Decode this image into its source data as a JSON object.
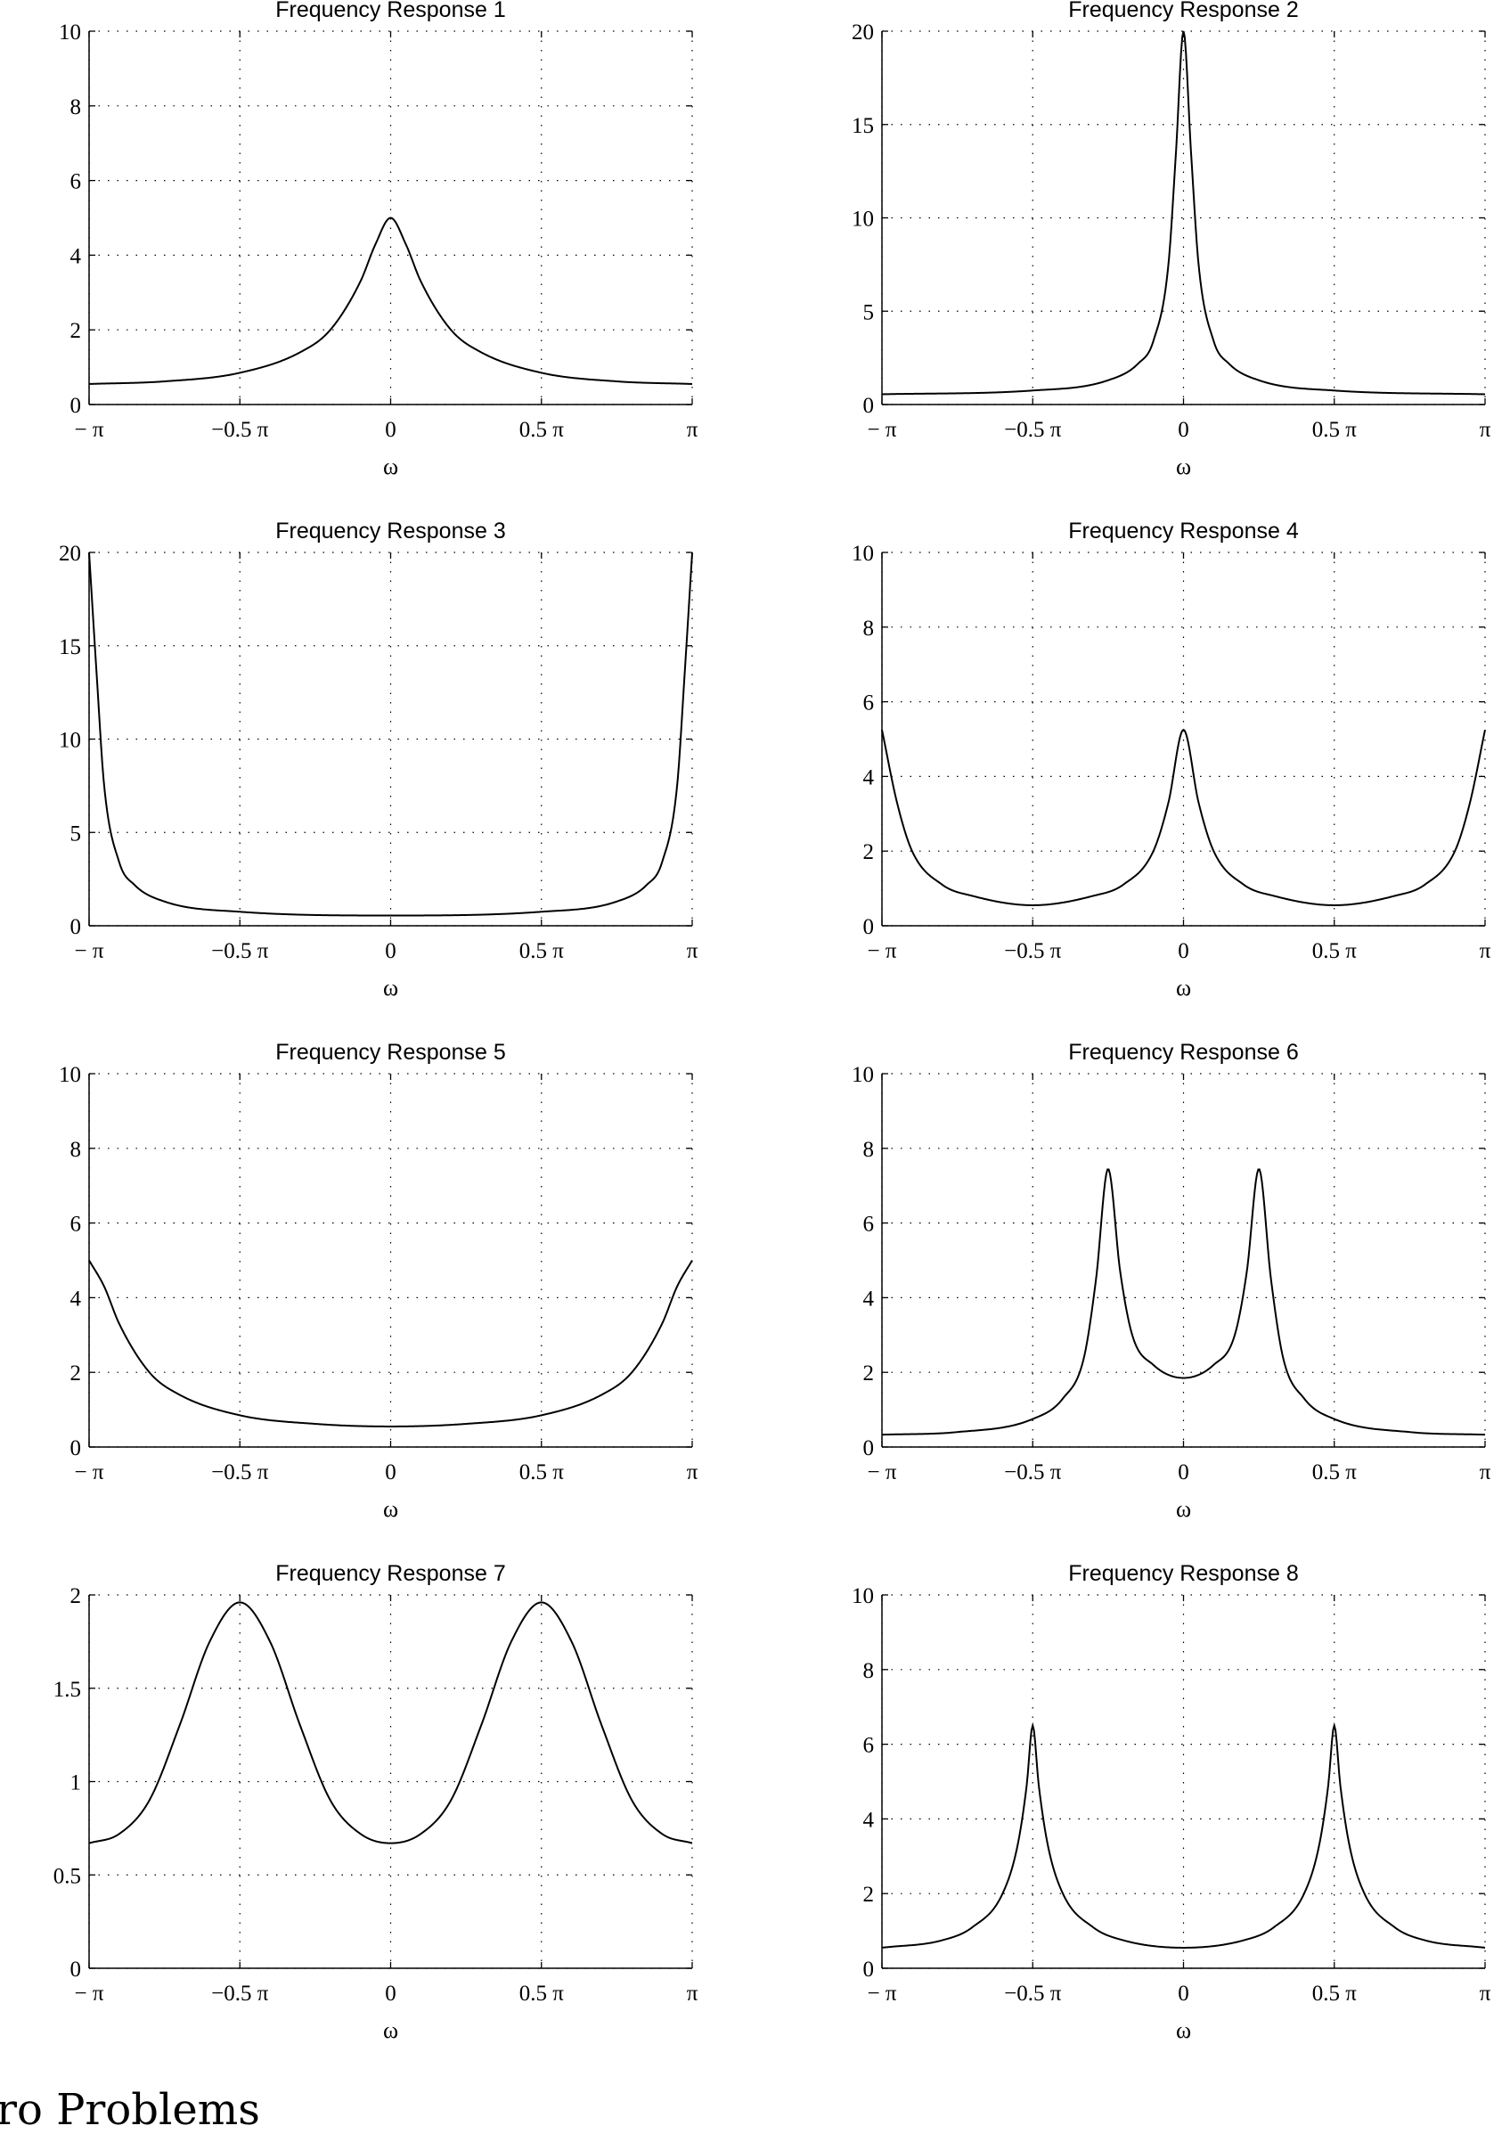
{
  "figure": {
    "x_ticks": [
      "− π",
      "−0.5 π",
      "0",
      "0.5 π",
      "π"
    ],
    "xlabel": "ω",
    "grid": true
  },
  "trailing_heading": "ro Problems",
  "chart_data": [
    {
      "type": "line",
      "title": "Frequency Response 1",
      "xlabel": "ω",
      "xlim": [
        -1,
        1
      ],
      "ylim": [
        0,
        10
      ],
      "yticks": [
        "0",
        "2",
        "4",
        "6",
        "8",
        "10"
      ],
      "ytick_values": [
        0,
        2,
        4,
        6,
        8,
        10
      ],
      "series": [
        {
          "x": [
            -1,
            -0.75,
            -0.5,
            -0.3,
            -0.2,
            -0.1,
            -0.05,
            0,
            0.05,
            0.1,
            0.2,
            0.3,
            0.5,
            0.75,
            1
          ],
          "values": [
            0.55,
            0.62,
            0.85,
            1.4,
            2.0,
            3.3,
            4.3,
            5.0,
            4.3,
            3.3,
            2.0,
            1.4,
            0.85,
            0.62,
            0.55
          ]
        }
      ]
    },
    {
      "type": "line",
      "title": "Frequency Response 2",
      "xlabel": "ω",
      "xlim": [
        -1,
        1
      ],
      "ylim": [
        0,
        20
      ],
      "yticks": [
        "0",
        "5",
        "10",
        "15",
        "20"
      ],
      "ytick_values": [
        0,
        5,
        10,
        15,
        20
      ],
      "series": [
        {
          "x": [
            -1,
            -0.5,
            -0.25,
            -0.15,
            -0.1,
            -0.05,
            -0.025,
            0,
            0.025,
            0.05,
            0.1,
            0.15,
            0.25,
            0.5,
            1
          ],
          "values": [
            0.55,
            0.75,
            1.3,
            2.2,
            3.4,
            7.5,
            13.5,
            20,
            13.5,
            7.5,
            3.4,
            2.2,
            1.3,
            0.75,
            0.55
          ]
        }
      ]
    },
    {
      "type": "line",
      "title": "Frequency Response 3",
      "xlabel": "ω",
      "xlim": [
        -1,
        1
      ],
      "ylim": [
        0,
        20
      ],
      "yticks": [
        "0",
        "5",
        "10",
        "15",
        "20"
      ],
      "ytick_values": [
        0,
        5,
        10,
        15,
        20
      ],
      "series": [
        {
          "x": [
            -1,
            -0.975,
            -0.95,
            -0.9,
            -0.85,
            -0.75,
            -0.5,
            0,
            0.5,
            0.75,
            0.85,
            0.9,
            0.95,
            0.975,
            1
          ],
          "values": [
            20,
            13.5,
            7.5,
            3.4,
            2.2,
            1.3,
            0.75,
            0.55,
            0.75,
            1.3,
            2.2,
            3.4,
            7.5,
            13.5,
            20
          ]
        }
      ]
    },
    {
      "type": "line",
      "title": "Frequency Response 4",
      "xlabel": "ω",
      "xlim": [
        -1,
        1
      ],
      "ylim": [
        0,
        10
      ],
      "yticks": [
        "0",
        "2",
        "4",
        "6",
        "8",
        "10"
      ],
      "ytick_values": [
        0,
        2,
        4,
        6,
        8,
        10
      ],
      "series": [
        {
          "x": [
            -1,
            -0.95,
            -0.9,
            -0.8,
            -0.7,
            -0.5,
            -0.3,
            -0.2,
            -0.1,
            -0.05,
            0,
            0.05,
            0.1,
            0.2,
            0.3,
            0.5,
            0.7,
            0.8,
            0.9,
            0.95,
            1
          ],
          "values": [
            5.25,
            3.3,
            2.0,
            1.1,
            0.8,
            0.55,
            0.8,
            1.1,
            2.0,
            3.3,
            5.25,
            3.3,
            2.0,
            1.1,
            0.8,
            0.55,
            0.8,
            1.1,
            2.0,
            3.3,
            5.25
          ]
        }
      ]
    },
    {
      "type": "line",
      "title": "Frequency Response 5",
      "xlabel": "ω",
      "xlim": [
        -1,
        1
      ],
      "ylim": [
        0,
        10
      ],
      "yticks": [
        "0",
        "2",
        "4",
        "6",
        "8",
        "10"
      ],
      "ytick_values": [
        0,
        2,
        4,
        6,
        8,
        10
      ],
      "series": [
        {
          "x": [
            -1,
            -0.95,
            -0.9,
            -0.8,
            -0.7,
            -0.5,
            -0.25,
            0,
            0.25,
            0.5,
            0.7,
            0.8,
            0.9,
            0.95,
            1
          ],
          "values": [
            5.0,
            4.3,
            3.3,
            2.0,
            1.4,
            0.85,
            0.62,
            0.55,
            0.62,
            0.85,
            1.4,
            2.0,
            3.3,
            4.3,
            5.0
          ]
        }
      ]
    },
    {
      "type": "line",
      "title": "Frequency Response 6",
      "xlabel": "ω",
      "xlim": [
        -1,
        1
      ],
      "ylim": [
        0,
        10
      ],
      "yticks": [
        "0",
        "2",
        "4",
        "6",
        "8",
        "10"
      ],
      "ytick_values": [
        0,
        2,
        4,
        6,
        8,
        10
      ],
      "series": [
        {
          "x": [
            -1,
            -0.75,
            -0.5,
            -0.4,
            -0.33,
            -0.29,
            -0.25,
            -0.21,
            -0.17,
            -0.1,
            0,
            0.1,
            0.17,
            0.21,
            0.25,
            0.29,
            0.33,
            0.4,
            0.5,
            0.75,
            1
          ],
          "values": [
            0.33,
            0.4,
            0.75,
            1.3,
            2.4,
            4.5,
            7.45,
            4.7,
            3.0,
            2.2,
            1.85,
            2.2,
            3.0,
            4.7,
            7.45,
            4.5,
            2.4,
            1.3,
            0.75,
            0.4,
            0.33
          ]
        }
      ]
    },
    {
      "type": "line",
      "title": "Frequency Response 7",
      "xlabel": "ω",
      "xlim": [
        -1,
        1
      ],
      "ylim": [
        0,
        2
      ],
      "yticks": [
        "0",
        "0.5",
        "1",
        "1.5",
        "2"
      ],
      "ytick_values": [
        0,
        0.5,
        1,
        1.5,
        2
      ],
      "series": [
        {
          "x": [
            -1,
            -0.9,
            -0.8,
            -0.7,
            -0.6,
            -0.5,
            -0.4,
            -0.3,
            -0.2,
            -0.1,
            0,
            0.1,
            0.2,
            0.3,
            0.4,
            0.5,
            0.6,
            0.7,
            0.8,
            0.9,
            1
          ],
          "values": [
            0.67,
            0.72,
            0.9,
            1.3,
            1.75,
            1.96,
            1.75,
            1.3,
            0.9,
            0.72,
            0.67,
            0.72,
            0.9,
            1.3,
            1.75,
            1.96,
            1.75,
            1.3,
            0.9,
            0.72,
            0.67
          ]
        }
      ]
    },
    {
      "type": "line",
      "title": "Frequency Response 8",
      "xlabel": "ω",
      "xlim": [
        -1,
        1
      ],
      "ylim": [
        0,
        10
      ],
      "yticks": [
        "0",
        "2",
        "4",
        "6",
        "8",
        "10"
      ],
      "ytick_values": [
        0,
        2,
        4,
        6,
        8,
        10
      ],
      "series": [
        {
          "x": [
            -1,
            -0.8,
            -0.7,
            -0.6,
            -0.55,
            -0.52,
            -0.5,
            -0.48,
            -0.45,
            -0.4,
            -0.3,
            -0.2,
            0,
            0.2,
            0.3,
            0.4,
            0.45,
            0.48,
            0.5,
            0.52,
            0.55,
            0.6,
            0.7,
            0.8,
            1
          ],
          "values": [
            0.55,
            0.75,
            1.1,
            2.0,
            3.3,
            4.9,
            6.5,
            4.9,
            3.3,
            2.0,
            1.1,
            0.75,
            0.55,
            0.75,
            1.1,
            2.0,
            3.3,
            4.9,
            6.5,
            4.9,
            3.3,
            2.0,
            1.1,
            0.75,
            0.55
          ]
        }
      ]
    }
  ]
}
